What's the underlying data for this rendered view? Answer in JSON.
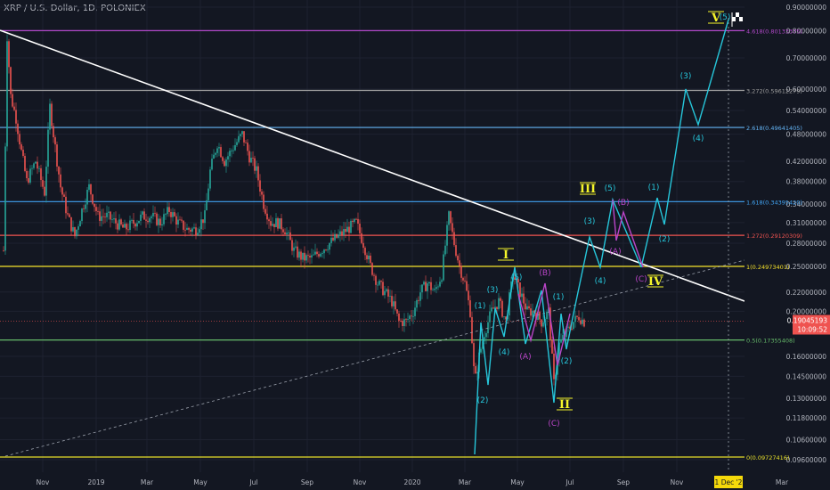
{
  "header": {
    "symbol": "XRP / U.S. Dollar, 1D, POLONIEX"
  },
  "colors": {
    "background": "#131722",
    "bull": "#26a69a",
    "bear": "#ef5350",
    "trendline": "#ffffff",
    "wave_cyan": "#26c6da",
    "wave_magenta": "#ba45c8",
    "wave_yellow": "#f5f52a",
    "price_badge": "#ef5350"
  },
  "chart_data": {
    "type": "candlestick",
    "yscale": "log",
    "ylim": [
      0.094,
      0.9
    ],
    "x_axis_labels": [
      "Nov",
      "2019",
      "Mar",
      "May",
      "Jul",
      "Sep",
      "Nov",
      "2020",
      "Mar",
      "May",
      "Jul",
      "Sep",
      "Nov",
      "Mar"
    ],
    "date_badge": "31 Dec '20",
    "y_ticks": [
      {
        "label": "0.90000000",
        "value": 0.9
      },
      {
        "label": "0.80000000",
        "value": 0.8
      },
      {
        "label": "0.70000000",
        "value": 0.7
      },
      {
        "label": "0.60000000",
        "value": 0.6
      },
      {
        "label": "0.54000000",
        "value": 0.54
      },
      {
        "label": "0.48000000",
        "value": 0.48
      },
      {
        "label": "0.42000000",
        "value": 0.42
      },
      {
        "label": "0.38000000",
        "value": 0.38
      },
      {
        "label": "0.34000000",
        "value": 0.34
      },
      {
        "label": "0.31000000",
        "value": 0.31
      },
      {
        "label": "0.28000000",
        "value": 0.28
      },
      {
        "label": "0.25000000",
        "value": 0.25
      },
      {
        "label": "0.22000000",
        "value": 0.22
      },
      {
        "label": "0.20000000",
        "value": 0.2
      },
      {
        "label": "0.16000000",
        "value": 0.16
      },
      {
        "label": "0.14500000",
        "value": 0.145
      },
      {
        "label": "0.13000000",
        "value": 0.13
      },
      {
        "label": "0.11800000",
        "value": 0.118
      },
      {
        "label": "0.10600000",
        "value": 0.106
      },
      {
        "label": "0.09600000",
        "value": 0.096
      }
    ],
    "current_price": {
      "value": 0.19045193,
      "label": "0.19045193",
      "countdown": "10:09:52"
    },
    "fib_levels": [
      {
        "label": "4.618(0.80133375)",
        "value": 0.80133375,
        "color": "#b048c8"
      },
      {
        "label": "3.272(0.59612279)",
        "value": 0.59612279,
        "color": "#9e9e9e"
      },
      {
        "label": "2.618(0.49641405)",
        "value": 0.49641405,
        "color": "#64b5f6"
      },
      {
        "label": "1.618(0.34395420)",
        "value": 0.3439542,
        "color": "#42a5f5"
      },
      {
        "label": "1.272(0.29120309)",
        "value": 0.29120309,
        "color": "#ef5350"
      },
      {
        "label": "1(0.24973401)",
        "value": 0.24973401,
        "color": "#f5e12a"
      },
      {
        "label": "0.5(0.17355408)",
        "value": 0.17355408,
        "color": "#66bb6a"
      },
      {
        "label": "0(0.09727416)",
        "value": 0.09727416,
        "color": "#e8e02a"
      }
    ],
    "wave_labels": {
      "cyan": [
        "(1)",
        "(2)",
        "(3)",
        "(4)",
        "(5)",
        "(1)",
        "(2)",
        "(3)",
        "(4)",
        "(5)",
        "(1)",
        "(2)",
        "(3)",
        "(4)",
        "(5)"
      ],
      "magenta": [
        "(A)",
        "(B)",
        "(C)",
        "(A)",
        "(B)",
        "(C)"
      ],
      "yellow": [
        "I",
        "II",
        "III",
        "IV",
        "V"
      ]
    }
  }
}
